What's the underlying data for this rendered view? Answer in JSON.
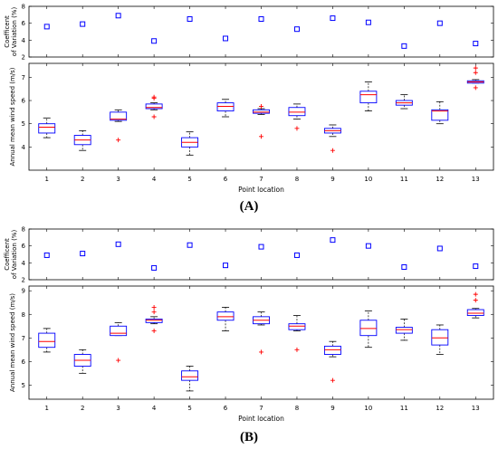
{
  "chart_data": [
    {
      "panel": "A",
      "panel_label": "(A)",
      "x_label": "Point location",
      "x_ticks": [
        "1",
        "2",
        "3",
        "4",
        "5",
        "6",
        "7",
        "8",
        "9",
        "10",
        "11",
        "12",
        "13"
      ],
      "cv_plot": {
        "type": "scatter",
        "ylabel_line1": "Coefficent",
        "ylabel_line2": "of Variation (%)",
        "ylim": [
          2,
          8
        ],
        "yticks": [
          "2",
          "4",
          "6",
          "8"
        ],
        "marker": "square",
        "color": "#0000ff",
        "x": [
          1,
          2,
          3,
          4,
          5,
          6,
          7,
          8,
          9,
          10,
          11,
          12,
          13
        ],
        "y": [
          5.6,
          5.9,
          6.9,
          3.9,
          6.5,
          4.2,
          6.5,
          5.3,
          6.6,
          6.1,
          3.3,
          6.0,
          3.6
        ]
      },
      "box_plot": {
        "type": "box",
        "ylabel": "Annual mean wind speed (m/s)",
        "ylim": [
          3,
          7.6
        ],
        "yticks": [
          "4",
          "5",
          "6",
          "7"
        ],
        "box_color": "#0000ff",
        "median_color": "#ff0000",
        "whisker_color": "#000000",
        "outlier_color": "#ff0000",
        "boxes": [
          {
            "x": 1,
            "whislo": 4.4,
            "q1": 4.6,
            "med": 4.85,
            "q3": 5.0,
            "whishi": 5.25,
            "fliers": []
          },
          {
            "x": 2,
            "whislo": 3.85,
            "q1": 4.1,
            "med": 4.3,
            "q3": 4.5,
            "whishi": 4.7,
            "fliers": []
          },
          {
            "x": 3,
            "whislo": 5.1,
            "q1": 5.15,
            "med": 5.2,
            "q3": 5.5,
            "whishi": 5.6,
            "fliers": [
              4.3
            ]
          },
          {
            "x": 4,
            "whislo": 5.6,
            "q1": 5.65,
            "med": 5.7,
            "q3": 5.85,
            "whishi": 5.9,
            "fliers": [
              5.3,
              6.1,
              6.15
            ]
          },
          {
            "x": 5,
            "whislo": 3.65,
            "q1": 4.0,
            "med": 4.2,
            "q3": 4.4,
            "whishi": 4.65,
            "fliers": []
          },
          {
            "x": 6,
            "whislo": 5.3,
            "q1": 5.55,
            "med": 5.75,
            "q3": 5.9,
            "whishi": 6.05,
            "fliers": []
          },
          {
            "x": 7,
            "whislo": 5.4,
            "q1": 5.45,
            "med": 5.5,
            "q3": 5.6,
            "whishi": 5.65,
            "fliers": [
              4.45,
              5.75
            ]
          },
          {
            "x": 8,
            "whislo": 5.2,
            "q1": 5.35,
            "med": 5.5,
            "q3": 5.7,
            "whishi": 5.85,
            "fliers": [
              4.8
            ]
          },
          {
            "x": 9,
            "whislo": 4.45,
            "q1": 4.6,
            "med": 4.7,
            "q3": 4.8,
            "whishi": 4.95,
            "fliers": [
              3.85
            ]
          },
          {
            "x": 10,
            "whislo": 5.55,
            "q1": 5.9,
            "med": 6.25,
            "q3": 6.4,
            "whishi": 6.8,
            "fliers": []
          },
          {
            "x": 11,
            "whislo": 5.65,
            "q1": 5.8,
            "med": 5.9,
            "q3": 6.0,
            "whishi": 6.25,
            "fliers": []
          },
          {
            "x": 12,
            "whislo": 5.0,
            "q1": 5.15,
            "med": 5.55,
            "q3": 5.6,
            "whishi": 5.95,
            "fliers": []
          },
          {
            "x": 13,
            "whislo": 6.75,
            "q1": 6.75,
            "med": 6.8,
            "q3": 6.85,
            "whishi": 6.9,
            "fliers": [
              6.55,
              7.2,
              7.4
            ]
          }
        ]
      }
    },
    {
      "panel": "B",
      "panel_label": "(B)",
      "x_label": "Point location",
      "x_ticks": [
        "1",
        "2",
        "3",
        "4",
        "5",
        "6",
        "7",
        "8",
        "9",
        "10",
        "11",
        "12",
        "13"
      ],
      "cv_plot": {
        "type": "scatter",
        "ylabel_line1": "Coefficent",
        "ylabel_line2": "of Variation (%)",
        "ylim": [
          2,
          8
        ],
        "yticks": [
          "2",
          "4",
          "6",
          "8"
        ],
        "marker": "square",
        "color": "#0000ff",
        "x": [
          1,
          2,
          3,
          4,
          5,
          6,
          7,
          8,
          9,
          10,
          11,
          12,
          13
        ],
        "y": [
          4.9,
          5.1,
          6.2,
          3.4,
          6.1,
          3.7,
          5.9,
          4.9,
          6.7,
          6.0,
          3.5,
          5.7,
          3.6
        ]
      },
      "box_plot": {
        "type": "box",
        "ylabel": "Annual mean wind speed (m/s)",
        "ylim": [
          4.4,
          9.2
        ],
        "yticks": [
          "5",
          "6",
          "7",
          "8",
          "9"
        ],
        "box_color": "#0000ff",
        "median_color": "#ff0000",
        "whisker_color": "#000000",
        "outlier_color": "#ff0000",
        "boxes": [
          {
            "x": 1,
            "whislo": 6.4,
            "q1": 6.6,
            "med": 6.85,
            "q3": 7.2,
            "whishi": 7.4,
            "fliers": []
          },
          {
            "x": 2,
            "whislo": 5.5,
            "q1": 5.8,
            "med": 6.05,
            "q3": 6.3,
            "whishi": 6.5,
            "fliers": []
          },
          {
            "x": 3,
            "whislo": 7.1,
            "q1": 7.1,
            "med": 7.2,
            "q3": 7.5,
            "whishi": 7.65,
            "fliers": [
              6.05
            ]
          },
          {
            "x": 4,
            "whislo": 7.6,
            "q1": 7.65,
            "med": 7.75,
            "q3": 7.8,
            "whishi": 7.9,
            "fliers": [
              7.3,
              8.1,
              8.3
            ]
          },
          {
            "x": 5,
            "whislo": 4.75,
            "q1": 5.2,
            "med": 5.35,
            "q3": 5.6,
            "whishi": 5.8,
            "fliers": []
          },
          {
            "x": 6,
            "whislo": 7.3,
            "q1": 7.75,
            "med": 7.9,
            "q3": 8.1,
            "whishi": 8.3,
            "fliers": []
          },
          {
            "x": 7,
            "whislo": 7.55,
            "q1": 7.6,
            "med": 7.75,
            "q3": 7.9,
            "whishi": 8.1,
            "fliers": [
              6.4
            ]
          },
          {
            "x": 8,
            "whislo": 7.3,
            "q1": 7.35,
            "med": 7.5,
            "q3": 7.6,
            "whishi": 7.95,
            "fliers": [
              6.5
            ]
          },
          {
            "x": 9,
            "whislo": 6.2,
            "q1": 6.3,
            "med": 6.5,
            "q3": 6.65,
            "whishi": 6.85,
            "fliers": [
              5.2
            ]
          },
          {
            "x": 10,
            "whislo": 6.6,
            "q1": 7.1,
            "med": 7.4,
            "q3": 7.75,
            "whishi": 8.15,
            "fliers": []
          },
          {
            "x": 11,
            "whislo": 6.9,
            "q1": 7.2,
            "med": 7.35,
            "q3": 7.45,
            "whishi": 7.8,
            "fliers": []
          },
          {
            "x": 12,
            "whislo": 6.3,
            "q1": 6.7,
            "med": 7.0,
            "q3": 7.35,
            "whishi": 7.55,
            "fliers": []
          },
          {
            "x": 13,
            "whislo": 7.85,
            "q1": 7.95,
            "med": 8.05,
            "q3": 8.2,
            "whishi": 8.25,
            "fliers": [
              8.6,
              8.85
            ]
          }
        ]
      }
    }
  ]
}
